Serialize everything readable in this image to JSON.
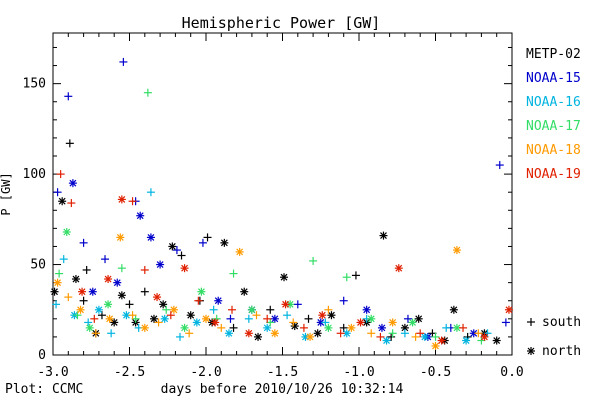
{
  "chart_data": {
    "type": "scatter",
    "title": "Hemispheric Power [GW]",
    "xlabel": "days before 2010/10/26 10:32:14",
    "ylabel": "P [GW]",
    "xlim": [
      -3.0,
      0.0
    ],
    "ylim": [
      0,
      178
    ],
    "xticks": [
      "-3.0",
      "-2.5",
      "-2.0",
      "-1.5",
      "-1.0",
      "-0.5",
      "0.0"
    ],
    "xtick_values": [
      -3.0,
      -2.5,
      -2.0,
      -1.5,
      -1.0,
      -0.5,
      0.0
    ],
    "yticks": [
      "0",
      "50",
      "100",
      "150"
    ],
    "ytick_values": [
      0,
      50,
      100,
      150
    ],
    "grid": false,
    "legend_position": "right",
    "series": [
      {
        "name": "METP-02",
        "color": "#000000",
        "points": [
          {
            "x": -2.99,
            "y": 35,
            "h": "north"
          },
          {
            "x": -2.94,
            "y": 85,
            "h": "north"
          },
          {
            "x": -2.89,
            "y": 117,
            "h": "south"
          },
          {
            "x": -2.85,
            "y": 42,
            "h": "north"
          },
          {
            "x": -2.8,
            "y": 30,
            "h": "south"
          },
          {
            "x": -2.78,
            "y": 47,
            "h": "south"
          },
          {
            "x": -2.72,
            "y": 12,
            "h": "north"
          },
          {
            "x": -2.68,
            "y": 22,
            "h": "south"
          },
          {
            "x": -2.6,
            "y": 18,
            "h": "north"
          },
          {
            "x": -2.55,
            "y": 33,
            "h": "north"
          },
          {
            "x": -2.5,
            "y": 28,
            "h": "south"
          },
          {
            "x": -2.46,
            "y": 18,
            "h": "north"
          },
          {
            "x": -2.4,
            "y": 35,
            "h": "south"
          },
          {
            "x": -2.34,
            "y": 20,
            "h": "north"
          },
          {
            "x": -2.28,
            "y": 28,
            "h": "north"
          },
          {
            "x": -2.22,
            "y": 60,
            "h": "north"
          },
          {
            "x": -2.16,
            "y": 55,
            "h": "south"
          },
          {
            "x": -2.1,
            "y": 22,
            "h": "north"
          },
          {
            "x": -2.04,
            "y": 30,
            "h": "south"
          },
          {
            "x": -1.99,
            "y": 65,
            "h": "south"
          },
          {
            "x": -1.96,
            "y": 18,
            "h": "north"
          },
          {
            "x": -1.88,
            "y": 62,
            "h": "north"
          },
          {
            "x": -1.82,
            "y": 15,
            "h": "south"
          },
          {
            "x": -1.75,
            "y": 35,
            "h": "north"
          },
          {
            "x": -1.66,
            "y": 10,
            "h": "north"
          },
          {
            "x": -1.58,
            "y": 25,
            "h": "south"
          },
          {
            "x": -1.49,
            "y": 43,
            "h": "north"
          },
          {
            "x": -1.42,
            "y": 16,
            "h": "north"
          },
          {
            "x": -1.33,
            "y": 20,
            "h": "south"
          },
          {
            "x": -1.27,
            "y": 12,
            "h": "north"
          },
          {
            "x": -1.18,
            "y": 22,
            "h": "north"
          },
          {
            "x": -1.1,
            "y": 15,
            "h": "south"
          },
          {
            "x": -1.02,
            "y": 44,
            "h": "south"
          },
          {
            "x": -0.95,
            "y": 18,
            "h": "north"
          },
          {
            "x": -0.84,
            "y": 66,
            "h": "north"
          },
          {
            "x": -0.79,
            "y": 10,
            "h": "south"
          },
          {
            "x": -0.7,
            "y": 15,
            "h": "north"
          },
          {
            "x": -0.61,
            "y": 20,
            "h": "north"
          },
          {
            "x": -0.52,
            "y": 12,
            "h": "south"
          },
          {
            "x": -0.44,
            "y": 8,
            "h": "north"
          },
          {
            "x": -0.38,
            "y": 25,
            "h": "north"
          },
          {
            "x": -0.29,
            "y": 10,
            "h": "south"
          },
          {
            "x": -0.18,
            "y": 12,
            "h": "north"
          },
          {
            "x": -0.1,
            "y": 8,
            "h": "north"
          }
        ]
      },
      {
        "name": "NOAA-15",
        "color": "#0000cc",
        "points": [
          {
            "x": -2.97,
            "y": 90,
            "h": "south"
          },
          {
            "x": -2.9,
            "y": 143,
            "h": "south"
          },
          {
            "x": -2.87,
            "y": 95,
            "h": "north"
          },
          {
            "x": -2.8,
            "y": 62,
            "h": "south"
          },
          {
            "x": -2.74,
            "y": 35,
            "h": "north"
          },
          {
            "x": -2.66,
            "y": 53,
            "h": "south"
          },
          {
            "x": -2.58,
            "y": 40,
            "h": "north"
          },
          {
            "x": -2.54,
            "y": 162,
            "h": "south"
          },
          {
            "x": -2.46,
            "y": 85,
            "h": "south"
          },
          {
            "x": -2.43,
            "y": 77,
            "h": "north"
          },
          {
            "x": -2.36,
            "y": 65,
            "h": "north"
          },
          {
            "x": -2.3,
            "y": 50,
            "h": "north"
          },
          {
            "x": -2.19,
            "y": 58,
            "h": "south"
          },
          {
            "x": -2.02,
            "y": 62,
            "h": "south"
          },
          {
            "x": -1.92,
            "y": 30,
            "h": "north"
          },
          {
            "x": -1.84,
            "y": 20,
            "h": "south"
          },
          {
            "x": -1.7,
            "y": 25,
            "h": "north"
          },
          {
            "x": -1.55,
            "y": 20,
            "h": "north"
          },
          {
            "x": -1.4,
            "y": 28,
            "h": "south"
          },
          {
            "x": -1.25,
            "y": 18,
            "h": "north"
          },
          {
            "x": -1.1,
            "y": 30,
            "h": "south"
          },
          {
            "x": -0.95,
            "y": 25,
            "h": "north"
          },
          {
            "x": -0.85,
            "y": 15,
            "h": "north"
          },
          {
            "x": -0.68,
            "y": 20,
            "h": "south"
          },
          {
            "x": -0.55,
            "y": 10,
            "h": "north"
          },
          {
            "x": -0.4,
            "y": 15,
            "h": "south"
          },
          {
            "x": -0.25,
            "y": 12,
            "h": "north"
          },
          {
            "x": -0.08,
            "y": 105,
            "h": "south"
          },
          {
            "x": -0.04,
            "y": 18,
            "h": "south"
          }
        ]
      },
      {
        "name": "NOAA-16",
        "color": "#00b4e0",
        "points": [
          {
            "x": -2.98,
            "y": 28,
            "h": "south"
          },
          {
            "x": -2.93,
            "y": 53,
            "h": "south"
          },
          {
            "x": -2.86,
            "y": 22,
            "h": "north"
          },
          {
            "x": -2.77,
            "y": 18,
            "h": "south"
          },
          {
            "x": -2.7,
            "y": 25,
            "h": "north"
          },
          {
            "x": -2.62,
            "y": 12,
            "h": "south"
          },
          {
            "x": -2.52,
            "y": 22,
            "h": "north"
          },
          {
            "x": -2.44,
            "y": 15,
            "h": "south"
          },
          {
            "x": -2.36,
            "y": 90,
            "h": "south"
          },
          {
            "x": -2.27,
            "y": 20,
            "h": "north"
          },
          {
            "x": -2.17,
            "y": 10,
            "h": "south"
          },
          {
            "x": -2.06,
            "y": 18,
            "h": "north"
          },
          {
            "x": -1.95,
            "y": 25,
            "h": "south"
          },
          {
            "x": -1.85,
            "y": 12,
            "h": "north"
          },
          {
            "x": -1.72,
            "y": 20,
            "h": "south"
          },
          {
            "x": -1.6,
            "y": 15,
            "h": "north"
          },
          {
            "x": -1.47,
            "y": 22,
            "h": "south"
          },
          {
            "x": -1.35,
            "y": 10,
            "h": "north"
          },
          {
            "x": -1.22,
            "y": 18,
            "h": "south"
          },
          {
            "x": -1.08,
            "y": 12,
            "h": "north"
          },
          {
            "x": -0.95,
            "y": 20,
            "h": "south"
          },
          {
            "x": -0.82,
            "y": 8,
            "h": "north"
          },
          {
            "x": -0.7,
            "y": 12,
            "h": "south"
          },
          {
            "x": -0.57,
            "y": 10,
            "h": "north"
          },
          {
            "x": -0.43,
            "y": 15,
            "h": "south"
          },
          {
            "x": -0.3,
            "y": 8,
            "h": "north"
          },
          {
            "x": -0.16,
            "y": 12,
            "h": "south"
          }
        ]
      },
      {
        "name": "NOAA-17",
        "color": "#33dd66",
        "points": [
          {
            "x": -2.96,
            "y": 45,
            "h": "south"
          },
          {
            "x": -2.91,
            "y": 68,
            "h": "north"
          },
          {
            "x": -2.84,
            "y": 22,
            "h": "south"
          },
          {
            "x": -2.76,
            "y": 15,
            "h": "north"
          },
          {
            "x": -2.64,
            "y": 28,
            "h": "north"
          },
          {
            "x": -2.55,
            "y": 48,
            "h": "south"
          },
          {
            "x": -2.46,
            "y": 20,
            "h": "south"
          },
          {
            "x": -2.38,
            "y": 145,
            "h": "south"
          },
          {
            "x": -2.26,
            "y": 25,
            "h": "south"
          },
          {
            "x": -2.14,
            "y": 15,
            "h": "north"
          },
          {
            "x": -2.03,
            "y": 35,
            "h": "north"
          },
          {
            "x": -1.93,
            "y": 20,
            "h": "south"
          },
          {
            "x": -1.82,
            "y": 45,
            "h": "south"
          },
          {
            "x": -1.7,
            "y": 25,
            "h": "north"
          },
          {
            "x": -1.58,
            "y": 18,
            "h": "south"
          },
          {
            "x": -1.45,
            "y": 28,
            "h": "north"
          },
          {
            "x": -1.3,
            "y": 52,
            "h": "south"
          },
          {
            "x": -1.2,
            "y": 15,
            "h": "north"
          },
          {
            "x": -1.08,
            "y": 43,
            "h": "south"
          },
          {
            "x": -0.92,
            "y": 20,
            "h": "north"
          },
          {
            "x": -0.78,
            "y": 12,
            "h": "south"
          },
          {
            "x": -0.65,
            "y": 18,
            "h": "north"
          },
          {
            "x": -0.5,
            "y": 10,
            "h": "south"
          },
          {
            "x": -0.36,
            "y": 15,
            "h": "north"
          },
          {
            "x": -0.2,
            "y": 8,
            "h": "south"
          }
        ]
      },
      {
        "name": "NOAA-18",
        "color": "#ff9a00",
        "points": [
          {
            "x": -2.97,
            "y": 40,
            "h": "north"
          },
          {
            "x": -2.9,
            "y": 32,
            "h": "south"
          },
          {
            "x": -2.82,
            "y": 25,
            "h": "north"
          },
          {
            "x": -2.72,
            "y": 12,
            "h": "south"
          },
          {
            "x": -2.63,
            "y": 20,
            "h": "north"
          },
          {
            "x": -2.56,
            "y": 65,
            "h": "north"
          },
          {
            "x": -2.48,
            "y": 22,
            "h": "south"
          },
          {
            "x": -2.4,
            "y": 15,
            "h": "north"
          },
          {
            "x": -2.31,
            "y": 18,
            "h": "south"
          },
          {
            "x": -2.21,
            "y": 25,
            "h": "north"
          },
          {
            "x": -2.11,
            "y": 12,
            "h": "south"
          },
          {
            "x": -2.0,
            "y": 20,
            "h": "north"
          },
          {
            "x": -1.9,
            "y": 15,
            "h": "south"
          },
          {
            "x": -1.78,
            "y": 57,
            "h": "north"
          },
          {
            "x": -1.67,
            "y": 22,
            "h": "south"
          },
          {
            "x": -1.55,
            "y": 12,
            "h": "north"
          },
          {
            "x": -1.43,
            "y": 18,
            "h": "south"
          },
          {
            "x": -1.32,
            "y": 10,
            "h": "north"
          },
          {
            "x": -1.2,
            "y": 25,
            "h": "south"
          },
          {
            "x": -1.05,
            "y": 15,
            "h": "north"
          },
          {
            "x": -0.92,
            "y": 12,
            "h": "south"
          },
          {
            "x": -0.78,
            "y": 18,
            "h": "north"
          },
          {
            "x": -0.63,
            "y": 10,
            "h": "south"
          },
          {
            "x": -0.5,
            "y": 5,
            "h": "north"
          },
          {
            "x": -0.36,
            "y": 58,
            "h": "north"
          },
          {
            "x": -0.22,
            "y": 12,
            "h": "south"
          }
        ]
      },
      {
        "name": "NOAA-19",
        "color": "#e02000",
        "points": [
          {
            "x": -2.95,
            "y": 100,
            "h": "south"
          },
          {
            "x": -2.88,
            "y": 84,
            "h": "south"
          },
          {
            "x": -2.81,
            "y": 35,
            "h": "north"
          },
          {
            "x": -2.73,
            "y": 20,
            "h": "south"
          },
          {
            "x": -2.64,
            "y": 42,
            "h": "north"
          },
          {
            "x": -2.55,
            "y": 86,
            "h": "north"
          },
          {
            "x": -2.48,
            "y": 85,
            "h": "south"
          },
          {
            "x": -2.4,
            "y": 47,
            "h": "south"
          },
          {
            "x": -2.32,
            "y": 32,
            "h": "north"
          },
          {
            "x": -2.23,
            "y": 22,
            "h": "south"
          },
          {
            "x": -2.14,
            "y": 48,
            "h": "north"
          },
          {
            "x": -2.05,
            "y": 30,
            "h": "south"
          },
          {
            "x": -1.94,
            "y": 18,
            "h": "north"
          },
          {
            "x": -1.83,
            "y": 25,
            "h": "south"
          },
          {
            "x": -1.72,
            "y": 12,
            "h": "north"
          },
          {
            "x": -1.6,
            "y": 20,
            "h": "south"
          },
          {
            "x": -1.48,
            "y": 28,
            "h": "north"
          },
          {
            "x": -1.36,
            "y": 15,
            "h": "south"
          },
          {
            "x": -1.24,
            "y": 22,
            "h": "north"
          },
          {
            "x": -1.12,
            "y": 12,
            "h": "south"
          },
          {
            "x": -0.99,
            "y": 18,
            "h": "north"
          },
          {
            "x": -0.86,
            "y": 10,
            "h": "south"
          },
          {
            "x": -0.74,
            "y": 48,
            "h": "north"
          },
          {
            "x": -0.6,
            "y": 12,
            "h": "south"
          },
          {
            "x": -0.46,
            "y": 8,
            "h": "north"
          },
          {
            "x": -0.32,
            "y": 15,
            "h": "south"
          },
          {
            "x": -0.18,
            "y": 10,
            "h": "north"
          },
          {
            "x": -0.02,
            "y": 25,
            "h": "north"
          }
        ]
      }
    ],
    "symbol_legend": [
      {
        "symbol": "+",
        "label": "south"
      },
      {
        "symbol": "*",
        "label": "north"
      }
    ]
  },
  "footer": {
    "credit": "Plot: CCMC"
  }
}
